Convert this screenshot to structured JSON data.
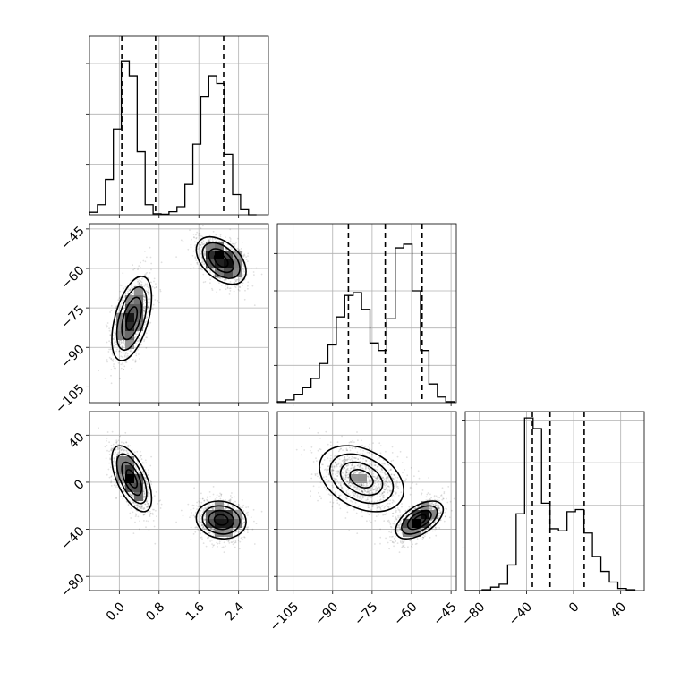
{
  "chart_data": {
    "type": "corner",
    "grid": true,
    "quantiles": [
      0.16,
      0.5,
      0.84
    ],
    "parameters": [
      {
        "name": "",
        "range": [
          -0.6,
          3.0
        ],
        "ticks": [
          0.0,
          0.8,
          1.6,
          2.4
        ],
        "tick_labels": [
          "0.0",
          "0.8",
          "1.6",
          "2.4"
        ],
        "quantile_values": [
          0.05,
          0.73,
          2.1
        ],
        "hist_bin_edges": [
          -0.6,
          -0.44,
          -0.28,
          -0.12,
          0.04,
          0.2,
          0.36,
          0.52,
          0.68,
          0.84,
          1.0,
          1.16,
          1.32,
          1.48,
          1.64,
          1.8,
          1.96,
          2.12,
          2.28,
          2.44,
          2.6,
          2.76
        ],
        "hist_counts": [
          0.05,
          0.2,
          0.7,
          1.7,
          3.05,
          2.75,
          1.25,
          0.2,
          0.02,
          0.01,
          0.06,
          0.16,
          0.6,
          1.4,
          2.35,
          2.75,
          2.6,
          1.2,
          0.4,
          0.1,
          0.0
        ],
        "hist_yticks": [
          1,
          2,
          3
        ],
        "hist_ylim": [
          0,
          3.55
        ]
      },
      {
        "name": "",
        "range": [
          -111,
          -43
        ],
        "ticks": [
          -105,
          -90,
          -75,
          -60,
          -45
        ],
        "tick_labels": [
          "−105",
          "−90",
          "−75",
          "−60",
          "−45"
        ],
        "quantile_values": [
          -84,
          -70,
          -56
        ],
        "hist_bin_edges": [
          -111,
          -107.8,
          -104.6,
          -101.4,
          -98.2,
          -95,
          -91.8,
          -88.6,
          -85.4,
          -82.2,
          -79,
          -75.8,
          -72.6,
          -69.4,
          -66.2,
          -63,
          -59.8,
          -56.6,
          -53.4,
          -50.2,
          -47,
          -43.8
        ],
        "hist_counts": [
          0.05,
          0.15,
          0.45,
          0.8,
          1.3,
          2.1,
          3.1,
          4.6,
          5.75,
          5.9,
          5.0,
          3.2,
          2.8,
          4.5,
          8.3,
          8.5,
          6.0,
          2.8,
          1.0,
          0.3,
          0.05
        ],
        "hist_yticks": [
          2,
          4,
          6,
          8
        ],
        "hist_ylim": [
          0,
          9.6
        ]
      },
      {
        "name": "",
        "range": [
          -92,
          60
        ],
        "ticks": [
          -80,
          -40,
          0,
          40
        ],
        "tick_labels": [
          "−80",
          "−40",
          "0",
          "40"
        ],
        "quantile_values": [
          -35,
          -20,
          9
        ],
        "hist_bin_edges": [
          -92,
          -84.8,
          -77.6,
          -70.4,
          -63.2,
          -56,
          -48.8,
          -41.6,
          -34.4,
          -27.2,
          -20,
          -12.8,
          -5.6,
          1.6,
          8.8,
          16,
          23.2,
          30.4,
          37.6,
          44.8,
          52
        ],
        "hist_counts": [
          0.0,
          0.0,
          0.02,
          0.08,
          0.15,
          0.6,
          1.8,
          4.05,
          3.8,
          2.05,
          1.45,
          1.4,
          1.85,
          1.9,
          1.35,
          0.8,
          0.45,
          0.2,
          0.05,
          0.02
        ],
        "hist_yticks": [
          1,
          2,
          3,
          4
        ],
        "hist_ylim": [
          0,
          4.2
        ]
      }
    ],
    "clusters": [
      {
        "mean": [
          0.25,
          -79,
          3
        ],
        "sd": [
          0.2,
          8,
          14
        ],
        "corr": {
          "0-1": 0.5,
          "0-2": -0.6,
          "1-2": -0.35
        },
        "weight": 0.5
      },
      {
        "mean": [
          2.05,
          -57,
          -32
        ],
        "sd": [
          0.25,
          4.5,
          8
        ],
        "corr": {
          "0-1": -0.45,
          "0-2": -0.1,
          "1-2": 0.55
        },
        "weight": 0.5
      }
    ]
  }
}
